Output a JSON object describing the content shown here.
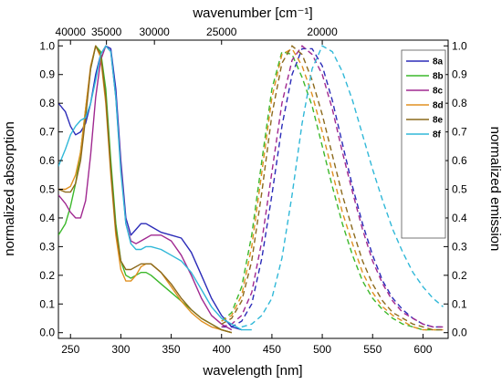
{
  "chart_data": {
    "type": "line",
    "xlabel": "wavelength [nm]",
    "x2label": "wavenumber [cm⁻¹]",
    "ylabel": "normalized absorption",
    "y2label": "normalized emission",
    "xlim": [
      238,
      625
    ],
    "ylim": [
      -0.02,
      1.02
    ],
    "x_ticks": [
      "250",
      "300",
      "350",
      "400",
      "450",
      "500",
      "550",
      "600"
    ],
    "x_tick_values": [
      250,
      300,
      350,
      400,
      450,
      500,
      550,
      600
    ],
    "y_ticks": [
      "0.0",
      "0.1",
      "0.2",
      "0.3",
      "0.4",
      "0.5",
      "0.6",
      "0.7",
      "0.8",
      "0.9",
      "1.0"
    ],
    "y_tick_values": [
      0,
      0.1,
      0.2,
      0.3,
      0.4,
      0.5,
      0.6,
      0.7,
      0.8,
      0.9,
      1.0
    ],
    "x2_ticks": [
      "40000",
      "35000",
      "30000",
      "25000",
      "20000"
    ],
    "x2_tick_values": [
      40000,
      35000,
      30000,
      25000,
      20000
    ],
    "grid": false,
    "legend_position": "top-right",
    "series": [
      {
        "name": "8a",
        "color": "#2b2bb8",
        "absorption": {
          "x": [
            238,
            245,
            250,
            255,
            260,
            265,
            270,
            275,
            280,
            285,
            290,
            295,
            300,
            305,
            310,
            315,
            320,
            325,
            330,
            340,
            350,
            360,
            370,
            380,
            390,
            400,
            410,
            420
          ],
          "y": [
            0.8,
            0.77,
            0.72,
            0.69,
            0.7,
            0.73,
            0.8,
            0.9,
            0.97,
            1.0,
            0.99,
            0.85,
            0.6,
            0.4,
            0.34,
            0.36,
            0.38,
            0.38,
            0.37,
            0.35,
            0.34,
            0.33,
            0.28,
            0.2,
            0.12,
            0.06,
            0.02,
            0.01
          ]
        },
        "emission": {
          "x": [
            400,
            410,
            420,
            430,
            440,
            450,
            460,
            470,
            480,
            490,
            500,
            510,
            520,
            530,
            540,
            550,
            560,
            570,
            580,
            590,
            600,
            610,
            620
          ],
          "y": [
            0.02,
            0.02,
            0.04,
            0.1,
            0.26,
            0.48,
            0.72,
            0.9,
            0.99,
            0.99,
            0.93,
            0.81,
            0.66,
            0.51,
            0.38,
            0.27,
            0.18,
            0.12,
            0.08,
            0.05,
            0.03,
            0.02,
            0.02
          ]
        }
      },
      {
        "name": "8b",
        "color": "#3cb82b",
        "absorption": {
          "x": [
            238,
            245,
            250,
            255,
            260,
            265,
            270,
            275,
            280,
            285,
            290,
            295,
            300,
            305,
            310,
            315,
            320,
            325,
            330,
            340,
            350,
            360,
            370,
            380,
            390,
            400,
            410
          ],
          "y": [
            0.34,
            0.38,
            0.44,
            0.52,
            0.63,
            0.78,
            0.92,
            1.0,
            0.98,
            0.85,
            0.6,
            0.38,
            0.25,
            0.2,
            0.19,
            0.2,
            0.21,
            0.21,
            0.2,
            0.17,
            0.14,
            0.11,
            0.08,
            0.05,
            0.03,
            0.01,
            0.0
          ]
        },
        "emission": {
          "x": [
            400,
            410,
            420,
            430,
            440,
            450,
            460,
            470,
            480,
            490,
            500,
            510,
            520,
            530,
            540,
            550,
            560,
            570,
            580,
            590,
            600,
            610,
            620
          ],
          "y": [
            0.04,
            0.07,
            0.16,
            0.34,
            0.6,
            0.85,
            0.98,
            0.97,
            0.89,
            0.79,
            0.65,
            0.51,
            0.38,
            0.27,
            0.18,
            0.12,
            0.08,
            0.05,
            0.03,
            0.02,
            0.01,
            0.01,
            0.01
          ]
        }
      },
      {
        "name": "8c",
        "color": "#a02890",
        "absorption": {
          "x": [
            238,
            245,
            250,
            255,
            260,
            265,
            270,
            275,
            280,
            285,
            290,
            295,
            300,
            305,
            310,
            315,
            320,
            325,
            330,
            340,
            350,
            360,
            370,
            380,
            390,
            400,
            410
          ],
          "y": [
            0.48,
            0.45,
            0.42,
            0.4,
            0.4,
            0.46,
            0.62,
            0.82,
            0.95,
            1.0,
            0.98,
            0.82,
            0.58,
            0.38,
            0.32,
            0.31,
            0.32,
            0.33,
            0.34,
            0.34,
            0.32,
            0.27,
            0.2,
            0.12,
            0.06,
            0.03,
            0.01
          ]
        },
        "emission": {
          "x": [
            400,
            410,
            420,
            430,
            440,
            450,
            460,
            470,
            480,
            490,
            500,
            510,
            520,
            530,
            540,
            550,
            560,
            570,
            580,
            590,
            600,
            610,
            620
          ],
          "y": [
            0.02,
            0.03,
            0.06,
            0.14,
            0.32,
            0.56,
            0.8,
            0.95,
            1.0,
            0.97,
            0.9,
            0.78,
            0.63,
            0.49,
            0.36,
            0.25,
            0.17,
            0.11,
            0.07,
            0.05,
            0.03,
            0.02,
            0.02
          ]
        }
      },
      {
        "name": "8d",
        "color": "#e09020",
        "absorption": {
          "x": [
            238,
            245,
            250,
            255,
            260,
            265,
            270,
            275,
            280,
            285,
            290,
            295,
            300,
            305,
            310,
            315,
            320,
            325,
            330,
            340,
            350,
            360,
            370,
            380,
            390,
            400,
            410
          ],
          "y": [
            0.5,
            0.5,
            0.51,
            0.55,
            0.63,
            0.78,
            0.93,
            1.0,
            0.96,
            0.8,
            0.55,
            0.34,
            0.22,
            0.18,
            0.18,
            0.2,
            0.23,
            0.24,
            0.24,
            0.21,
            0.16,
            0.11,
            0.07,
            0.04,
            0.02,
            0.01,
            0.0
          ]
        },
        "emission": {
          "x": [
            400,
            410,
            420,
            430,
            440,
            450,
            460,
            470,
            480,
            490,
            500,
            510,
            520,
            530,
            540,
            550,
            560,
            570,
            580,
            590,
            600,
            610,
            620
          ],
          "y": [
            0.04,
            0.06,
            0.13,
            0.3,
            0.56,
            0.82,
            0.97,
            0.99,
            0.93,
            0.83,
            0.7,
            0.56,
            0.42,
            0.31,
            0.21,
            0.14,
            0.09,
            0.06,
            0.04,
            0.02,
            0.01,
            0.01,
            0.01
          ]
        }
      },
      {
        "name": "8e",
        "color": "#8c6a1c",
        "absorption": {
          "x": [
            238,
            245,
            250,
            255,
            260,
            265,
            270,
            275,
            280,
            285,
            290,
            295,
            300,
            305,
            310,
            315,
            320,
            325,
            330,
            340,
            350,
            360,
            370,
            380,
            390,
            400,
            410
          ],
          "y": [
            0.5,
            0.49,
            0.49,
            0.52,
            0.6,
            0.75,
            0.92,
            1.0,
            0.97,
            0.82,
            0.57,
            0.36,
            0.25,
            0.22,
            0.22,
            0.23,
            0.24,
            0.24,
            0.24,
            0.21,
            0.17,
            0.12,
            0.08,
            0.05,
            0.03,
            0.01,
            0.0
          ]
        },
        "emission": {
          "x": [
            400,
            410,
            420,
            430,
            440,
            450,
            460,
            470,
            480,
            490,
            500,
            510,
            520,
            530,
            540,
            550,
            560,
            570,
            580,
            590,
            600,
            610,
            620
          ],
          "y": [
            0.03,
            0.05,
            0.11,
            0.25,
            0.49,
            0.76,
            0.94,
            1.0,
            0.97,
            0.88,
            0.76,
            0.62,
            0.48,
            0.36,
            0.25,
            0.17,
            0.11,
            0.07,
            0.05,
            0.03,
            0.02,
            0.01,
            0.01
          ]
        }
      },
      {
        "name": "8f",
        "color": "#30b8d8",
        "absorption": {
          "x": [
            238,
            245,
            250,
            255,
            260,
            265,
            270,
            275,
            280,
            285,
            290,
            295,
            300,
            305,
            310,
            315,
            320,
            325,
            330,
            340,
            350,
            360,
            370,
            380,
            390,
            400,
            410,
            420,
            430
          ],
          "y": [
            0.58,
            0.64,
            0.69,
            0.72,
            0.74,
            0.75,
            0.8,
            0.88,
            0.97,
            1.0,
            0.98,
            0.82,
            0.56,
            0.38,
            0.31,
            0.29,
            0.29,
            0.3,
            0.3,
            0.29,
            0.27,
            0.25,
            0.21,
            0.15,
            0.09,
            0.05,
            0.03,
            0.01,
            0.01
          ]
        },
        "emission": {
          "x": [
            420,
            430,
            440,
            450,
            460,
            470,
            480,
            490,
            500,
            510,
            520,
            530,
            540,
            550,
            560,
            570,
            580,
            590,
            600,
            610,
            620
          ],
          "y": [
            0.02,
            0.03,
            0.06,
            0.12,
            0.26,
            0.48,
            0.73,
            0.92,
            1.0,
            0.98,
            0.91,
            0.81,
            0.69,
            0.57,
            0.46,
            0.36,
            0.28,
            0.21,
            0.16,
            0.12,
            0.09
          ]
        }
      }
    ]
  }
}
